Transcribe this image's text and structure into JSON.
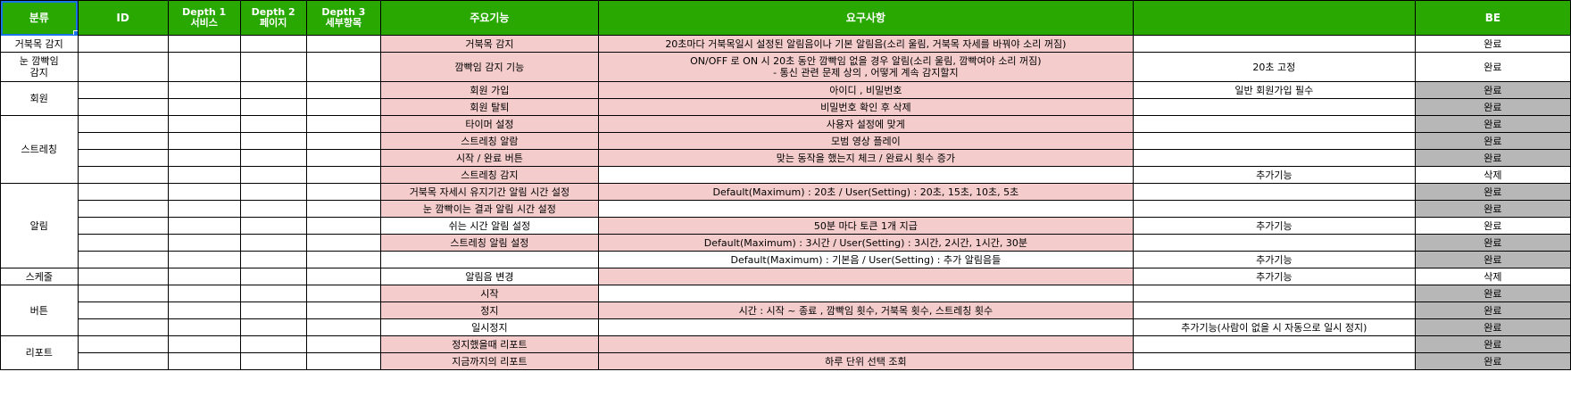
{
  "header": {
    "category": "분류",
    "id": "ID",
    "depth1": [
      "Depth 1",
      "서비스"
    ],
    "depth2": [
      "Depth 2",
      "페이지"
    ],
    "depth3": [
      "Depth 3",
      "세부항목"
    ],
    "feature": "주요기능",
    "requirement": "요구사항",
    "note": "",
    "be": "BE"
  },
  "colors": {
    "header_green": "#28a800",
    "pink": "#f4cccc",
    "gray": "#b7b7b7"
  },
  "groups": [
    {
      "category": [
        "거북목 감지"
      ]
    },
    {
      "category": [
        "눈 깜빡임",
        "감지"
      ]
    },
    {
      "category": [
        "회원"
      ]
    },
    {
      "category": [
        "스트레칭"
      ]
    },
    {
      "category": [
        "알림"
      ]
    },
    {
      "category": [
        "스케줄"
      ]
    },
    {
      "category": [
        "버튼"
      ]
    },
    {
      "category": [
        "리포트"
      ]
    }
  ],
  "rows": [
    {
      "feature": "거북목 감지",
      "requirement": [
        "20초마다 거북목일시 설정된 알림음이나 기본 알림음(소리 울림, 거북목 자세를 바꿔야 소리 꺼짐)"
      ],
      "note": "",
      "be": "완료"
    },
    {
      "feature": "깜빡임 감지 기능",
      "requirement": [
        "ON/OFF 로 ON 시 20초 동안 깜빡임 없을 경우 알림(소리 울림, 깜빡여야 소리 꺼짐)",
        "- 통신 관련 문제 상의 , 어떻게  계속 감지할지"
      ],
      "note": "20초 고정",
      "be": "완료"
    },
    {
      "feature": "회원 가입",
      "requirement": [
        "아이디 , 비밀번호"
      ],
      "note": "일반 회원가입 필수",
      "be": "완료"
    },
    {
      "feature": "회원 탈퇴",
      "requirement": [
        "비밀번호 확인 후 삭제"
      ],
      "note": "",
      "be": "완료"
    },
    {
      "feature": "타이머 설정",
      "requirement": [
        "사용자 설정에 맞게"
      ],
      "note": "",
      "be": "완료"
    },
    {
      "feature": "스트레칭 알람",
      "requirement": [
        "모범 영상 플레이"
      ],
      "note": "",
      "be": "완료"
    },
    {
      "feature": "시작 / 완료 버튼",
      "requirement": [
        "맞는 동작을 했는지 체크 / 완료시 횟수 증가"
      ],
      "note": "",
      "be": "완료"
    },
    {
      "feature": "스트레칭 감지",
      "requirement": [],
      "note": "추가기능",
      "be": "삭제"
    },
    {
      "feature": "거북목 자세시 유지기간 알림 시간 설정",
      "requirement": [
        "Default(Maximum) : 20초 / User(Setting) : 20초, 15초, 10초, 5초"
      ],
      "note": "",
      "be": "완료"
    },
    {
      "feature": "눈 깜빡이는 결과 알림 시간 설정",
      "requirement": [],
      "note": "",
      "be": "완료"
    },
    {
      "feature": "쉬는 시간 알림 설정",
      "requirement": [
        "50분 마다 토큰 1개 지급"
      ],
      "note": "추가기능",
      "be": "완료"
    },
    {
      "feature": "스트레칭 알림 설정",
      "requirement": [
        "Default(Maximum) : 3시간 / User(Setting) : 3시간, 2시간, 1시간, 30분"
      ],
      "note": "",
      "be": "완료"
    },
    {
      "feature": "",
      "requirement": [
        "Default(Maximum) : 기본음 / User(Setting) : 추가 알림음들"
      ],
      "note": "추가기능",
      "be": "완료"
    },
    {
      "feature": "알림음 변경",
      "requirement": [],
      "note": "추가기능",
      "be": "삭제"
    },
    {
      "feature": "시작",
      "requirement": [],
      "note": "",
      "be": "완료"
    },
    {
      "feature": "정지",
      "requirement": [
        "시간 : 시작 ~ 종료 , 깜빡임 횟수, 거북목 횟수, 스트레칭 횟수"
      ],
      "note": "",
      "be": "완료"
    },
    {
      "feature": "일시정지",
      "requirement": [],
      "note": "추가기능(사람이 없을 시 자동으로 일시 정지)",
      "be": "완료"
    },
    {
      "feature": "정지했을때 리포트",
      "requirement": [],
      "note": "",
      "be": "완료"
    },
    {
      "feature": "지금까지의 리포트",
      "requirement": [
        "하루 단위 선택 조회"
      ],
      "note": "",
      "be": "완료"
    }
  ]
}
